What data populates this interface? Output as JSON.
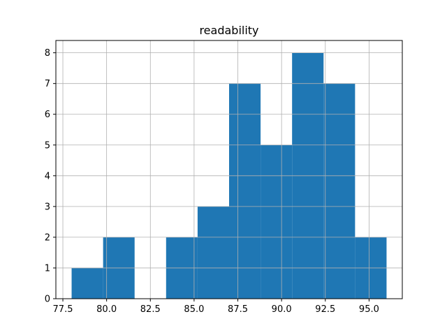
{
  "chart_data": {
    "type": "bar",
    "title": "readability",
    "xlabel": "",
    "ylabel": "",
    "grid": true,
    "bin_edges": [
      78.0,
      79.8,
      81.6,
      83.4,
      85.2,
      87.0,
      88.8,
      90.6,
      92.4,
      94.2,
      96.0
    ],
    "counts": [
      1,
      2,
      0,
      2,
      3,
      7,
      5,
      8,
      7,
      2
    ],
    "xlim": [
      77.1,
      96.9
    ],
    "ylim": [
      0,
      8.4
    ],
    "xticks": [
      77.5,
      80.0,
      82.5,
      85.0,
      87.5,
      90.0,
      92.5,
      95.0
    ],
    "xtick_labels": [
      "77.5",
      "80.0",
      "82.5",
      "85.0",
      "87.5",
      "90.0",
      "92.5",
      "95.0"
    ],
    "yticks": [
      0,
      1,
      2,
      3,
      4,
      5,
      6,
      7,
      8
    ],
    "ytick_labels": [
      "0",
      "1",
      "2",
      "3",
      "4",
      "5",
      "6",
      "7",
      "8"
    ],
    "bar_color": "#1f77b4",
    "grid_color": "#b0b0b0"
  }
}
